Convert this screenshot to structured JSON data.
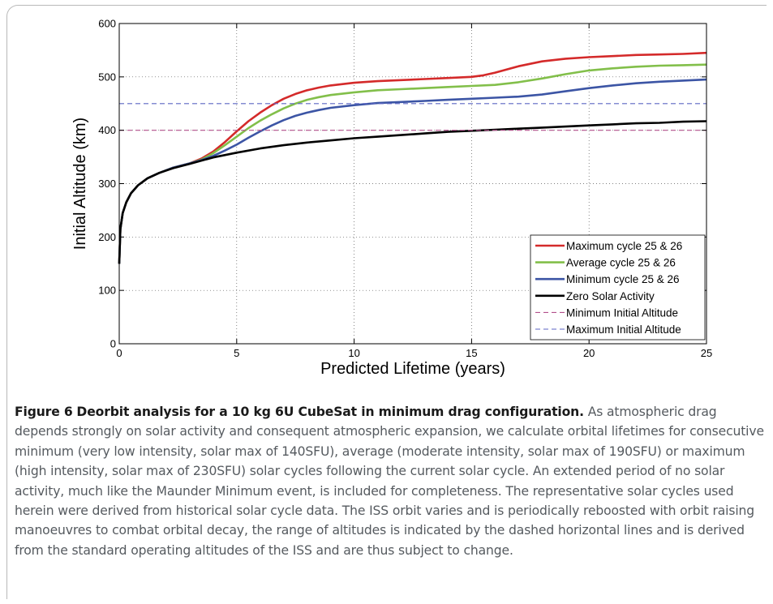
{
  "figure": {
    "label": "Figure 6",
    "title": "Deorbit analysis for a 10 kg 6U CubeSat in minimum drag configuration.",
    "description": "As atmospheric drag depends strongly on solar activity and consequent atmospheric expansion, we calculate orbital lifetimes for consecutive minimum (very low intensity, solar max of 140SFU), average (moderate intensity, solar max of 190SFU) or maximum (high intensity, solar max of 230SFU) solar cycles following the current solar cycle. An extended period of no solar activity, much like the Maunder Minimum event, is included for completeness. The representative solar cycles used herein were derived from historical solar cycle data. The ISS orbit varies and is periodically reboosted with orbit raising manoeuvres to combat orbital decay, the range of altitudes is indicated by the dashed horizontal lines and is derived from the standard operating altitudes of the ISS and are thus subject to change."
  },
  "chart_data": {
    "type": "line",
    "xlabel": "Predicted Lifetime (years)",
    "ylabel": "Initial Altitude (km)",
    "xlim": [
      0,
      25
    ],
    "ylim": [
      0,
      600
    ],
    "xticks": [
      0,
      5,
      10,
      15,
      20,
      25
    ],
    "yticks": [
      0,
      100,
      200,
      300,
      400,
      500,
      600
    ],
    "grid": "dotted",
    "legend_position": "bottom-right",
    "series": [
      {
        "name": "Maximum cycle 25 & 26",
        "color": "#d42a2a",
        "style": "solid",
        "x": [
          0,
          0.05,
          0.15,
          0.3,
          0.5,
          0.8,
          1.2,
          1.7,
          2.3,
          3.0,
          3.5,
          4.0,
          4.5,
          5.0,
          5.5,
          6.0,
          6.5,
          7.0,
          7.5,
          8.0,
          8.5,
          9.0,
          10.0,
          11.0,
          12.0,
          13.0,
          14.0,
          15.0,
          15.5,
          16.0,
          17.0,
          18.0,
          19.0,
          20.0,
          21.0,
          22.0,
          23.0,
          24.0,
          25.0
        ],
        "y": [
          150,
          215,
          245,
          265,
          282,
          297,
          310,
          320,
          330,
          338,
          347,
          360,
          378,
          398,
          417,
          433,
          447,
          459,
          468,
          475,
          480,
          484,
          489,
          492,
          494,
          496,
          498,
          500,
          503,
          508,
          520,
          529,
          534,
          537,
          539,
          541,
          542,
          543,
          545
        ]
      },
      {
        "name": "Average cycle 25 & 26",
        "color": "#82bf4a",
        "style": "solid",
        "x": [
          0,
          0.05,
          0.15,
          0.3,
          0.5,
          0.8,
          1.2,
          1.7,
          2.3,
          3.0,
          3.5,
          4.0,
          4.5,
          5.0,
          5.5,
          6.0,
          6.5,
          7.0,
          7.5,
          8.0,
          8.5,
          9.0,
          10.0,
          11.0,
          12.0,
          13.0,
          14.0,
          15.0,
          16.0,
          17.0,
          18.0,
          19.0,
          20.0,
          21.0,
          22.0,
          23.0,
          24.0,
          25.0
        ],
        "y": [
          150,
          215,
          245,
          265,
          282,
          297,
          310,
          320,
          330,
          338,
          345,
          357,
          372,
          388,
          404,
          418,
          430,
          441,
          450,
          457,
          462,
          466,
          471,
          475,
          477,
          479,
          481,
          483,
          485,
          490,
          497,
          505,
          512,
          516,
          519,
          521,
          522,
          523
        ]
      },
      {
        "name": "Minimum cycle 25 & 26",
        "color": "#3c55a5",
        "style": "solid",
        "x": [
          0,
          0.05,
          0.15,
          0.3,
          0.5,
          0.8,
          1.2,
          1.7,
          2.3,
          3.0,
          3.5,
          4.0,
          4.5,
          5.0,
          5.5,
          6.0,
          6.5,
          7.0,
          7.5,
          8.0,
          8.5,
          9.0,
          10.0,
          11.0,
          12.0,
          13.0,
          14.0,
          15.0,
          16.0,
          17.0,
          18.0,
          19.0,
          20.0,
          21.0,
          22.0,
          23.0,
          24.0,
          25.0
        ],
        "y": [
          150,
          215,
          245,
          265,
          282,
          297,
          310,
          320,
          330,
          338,
          344,
          352,
          362,
          373,
          386,
          398,
          409,
          419,
          427,
          433,
          438,
          442,
          447,
          451,
          453,
          455,
          457,
          459,
          461,
          463,
          467,
          473,
          479,
          484,
          488,
          491,
          493,
          495
        ]
      },
      {
        "name": "Zero Solar Activity",
        "color": "#000000",
        "style": "solid",
        "x": [
          0,
          0.05,
          0.15,
          0.3,
          0.5,
          0.8,
          1.2,
          1.7,
          2.3,
          3.0,
          4.0,
          5.0,
          6.0,
          7.0,
          8.0,
          9.0,
          10.0,
          11.0,
          12.0,
          13.0,
          14.0,
          15.0,
          16.0,
          17.0,
          18.0,
          19.0,
          20.0,
          21.0,
          22.0,
          23.0,
          24.0,
          25.0
        ],
        "y": [
          150,
          215,
          245,
          265,
          282,
          297,
          310,
          320,
          329,
          337,
          349,
          358,
          366,
          372,
          377,
          381,
          385,
          388,
          391,
          394,
          397,
          399,
          401,
          403,
          405,
          407,
          409,
          411,
          413,
          414,
          416,
          417
        ]
      },
      {
        "name": "Minimum Initial Altitude",
        "color": "#b2508c",
        "style": "dashed",
        "x": [
          0,
          25
        ],
        "y": [
          400,
          400
        ]
      },
      {
        "name": "Maximum Initial Altitude",
        "color": "#5c66c4",
        "style": "dashed",
        "x": [
          0,
          25
        ],
        "y": [
          450,
          450
        ]
      }
    ]
  }
}
